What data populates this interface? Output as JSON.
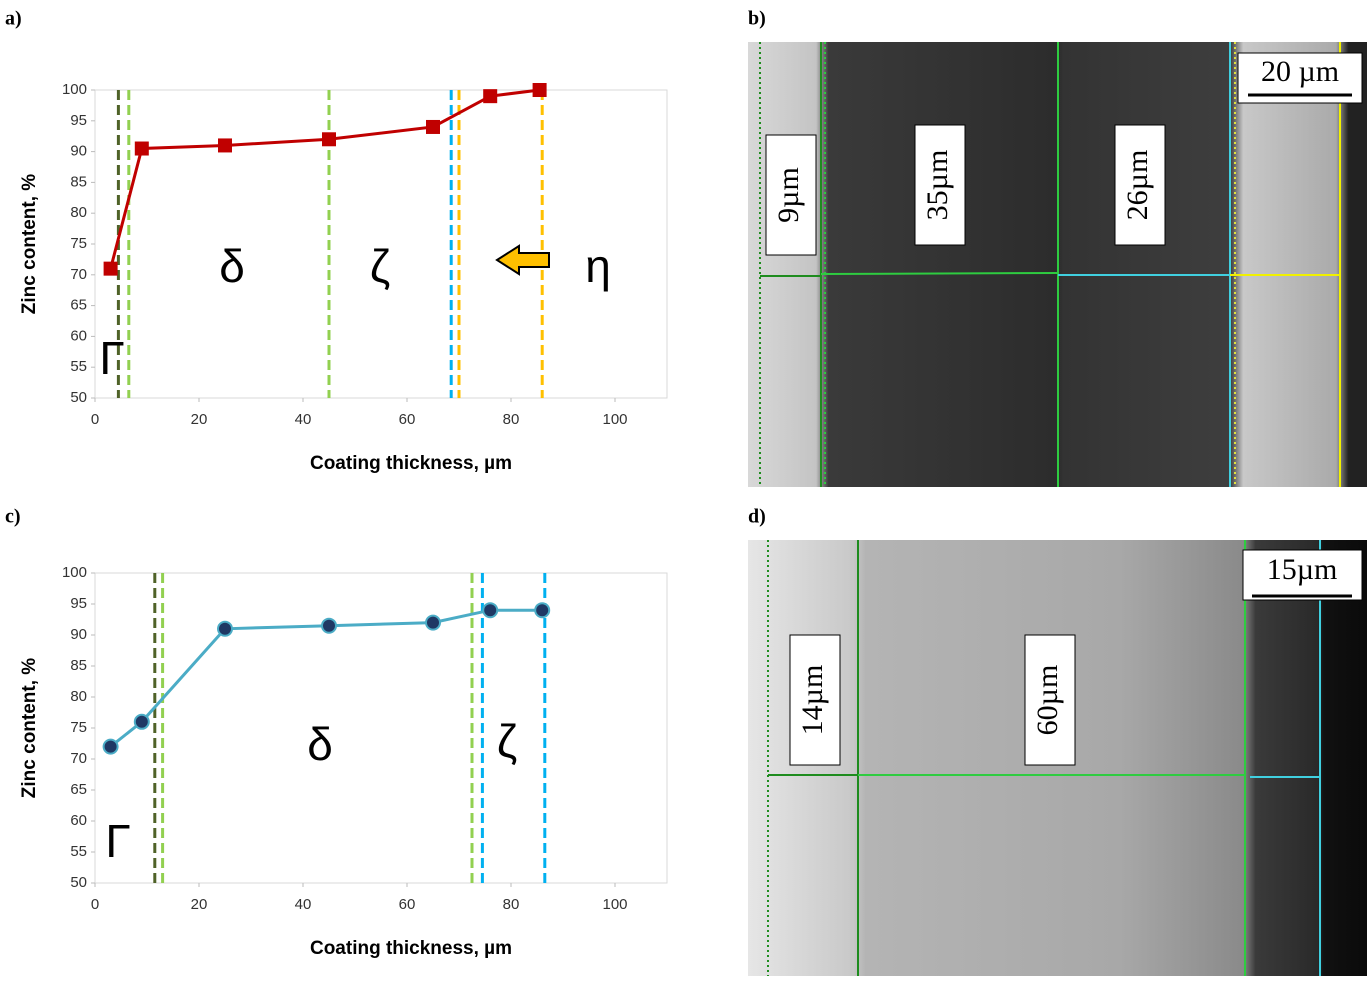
{
  "panel_labels": [
    "a)",
    "b)",
    "c)",
    "d)"
  ],
  "chart_data": [
    {
      "type": "line",
      "x_label": "Coating thickness, µm",
      "y_label": "Zinc content, %",
      "series": [
        {
          "color": "#c00000",
          "marker": "square",
          "x": [
            3,
            9,
            25,
            45,
            65,
            76,
            85.5
          ],
          "values": [
            71,
            90.5,
            91,
            92,
            94,
            99,
            100
          ]
        }
      ],
      "xlim": [
        0,
        110
      ],
      "xticks": [
        0,
        20,
        40,
        60,
        80,
        100
      ],
      "ylim": [
        50,
        100
      ],
      "yticks": [
        50,
        55,
        60,
        65,
        70,
        75,
        80,
        85,
        90,
        95,
        100
      ],
      "boundaries": [
        {
          "x": 4.5,
          "color": "#4f6228"
        },
        {
          "x": 6.5,
          "color": "#92d050"
        },
        {
          "x": 45,
          "color": "#92d050"
        },
        {
          "x": 68.5,
          "color": "#00b0f0"
        },
        {
          "x": 70,
          "color": "#ffc000"
        },
        {
          "x": 86,
          "color": "#ffc000"
        }
      ],
      "annotations": [
        "Γ",
        "δ",
        "ζ",
        "η"
      ],
      "arrow": true
    },
    {
      "type": "line",
      "x_label": "Coating thickness, µm",
      "y_label": "Zinc content, %",
      "series": [
        {
          "color": "#4bacc6",
          "marker": "circle",
          "x": [
            3,
            9,
            25,
            45,
            65,
            76,
            86
          ],
          "values": [
            72,
            76,
            91,
            91.5,
            92,
            94,
            94
          ]
        }
      ],
      "xlim": [
        0,
        110
      ],
      "xticks": [
        0,
        20,
        40,
        60,
        80,
        100
      ],
      "ylim": [
        50,
        100
      ],
      "yticks": [
        50,
        55,
        60,
        65,
        70,
        75,
        80,
        85,
        90,
        95,
        100
      ],
      "boundaries": [
        {
          "x": 11.5,
          "color": "#4f6228"
        },
        {
          "x": 13,
          "color": "#92d050"
        },
        {
          "x": 72.5,
          "color": "#92d050"
        },
        {
          "x": 74.5,
          "color": "#00b0f0"
        },
        {
          "x": 86.5,
          "color": "#00b0f0"
        }
      ],
      "annotations": [
        "Γ",
        "δ",
        "ζ"
      ],
      "arrow": false
    }
  ],
  "micrographs": [
    {
      "scale_bar": "20 µm",
      "layer_labels": [
        "9µm",
        "35µm",
        "26µm"
      ]
    },
    {
      "scale_bar": "15µm",
      "layer_labels": [
        "14µm",
        "60µm"
      ]
    }
  ]
}
